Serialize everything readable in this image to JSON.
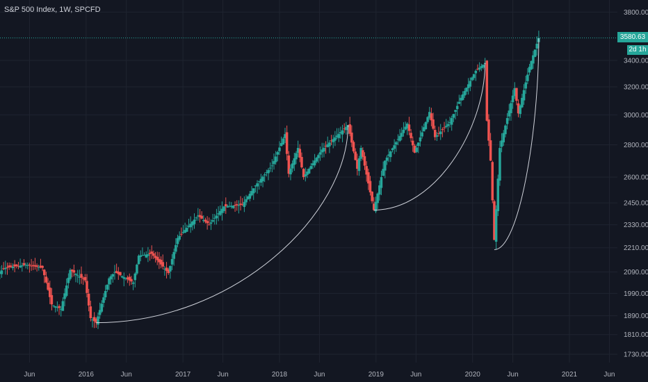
{
  "legend": {
    "title": "S&P 500 Index, 1W, SPCFD"
  },
  "last_price": {
    "value": "3580.63",
    "countdown": "2d 1h"
  },
  "colors": {
    "background": "#131722",
    "up": "#26a69a",
    "down": "#ef5350",
    "grid": "#1f2430",
    "axis_text": "#b2b5be",
    "arc": "#d1d4dc",
    "price_line": "#26a69a"
  },
  "chart_data": {
    "type": "candlestick",
    "title": "S&P 500 Index, 1W, SPCFD",
    "scale": "log",
    "grid": true,
    "y_ticks": [
      1730,
      1810,
      1890,
      1990,
      2090,
      2210,
      2330,
      2450,
      2600,
      2800,
      3000,
      3200,
      3400,
      3800
    ],
    "y_tick_labels": [
      "1730.00",
      "1810.00",
      "1890.00",
      "1990.00",
      "2090.00",
      "2210.00",
      "2330.00",
      "2450.00",
      "2600.00",
      "2800.00",
      "3000.00",
      "3200.00",
      "3400.00",
      "3800.00"
    ],
    "x_ticks": [
      {
        "label": "Jun",
        "date": "2015-06-01"
      },
      {
        "label": "2016",
        "date": "2016-01-01"
      },
      {
        "label": "Jun",
        "date": "2016-06-01"
      },
      {
        "label": "2017",
        "date": "2017-01-01"
      },
      {
        "label": "Jun",
        "date": "2017-06-01"
      },
      {
        "label": "2018",
        "date": "2018-01-01"
      },
      {
        "label": "Jun",
        "date": "2018-06-01"
      },
      {
        "label": "2019",
        "date": "2019-01-01"
      },
      {
        "label": "Jun",
        "date": "2019-06-01"
      },
      {
        "label": "2020",
        "date": "2020-01-01"
      },
      {
        "label": "Jun",
        "date": "2020-06-01"
      },
      {
        "label": "2021",
        "date": "2021-01-01"
      },
      {
        "label": "Jun",
        "date": "2021-06-01"
      }
    ],
    "close_path": [
      [
        "2015-01-05",
        2060
      ],
      [
        "2015-03-02",
        2110
      ],
      [
        "2015-05-18",
        2125
      ],
      [
        "2015-07-20",
        2110
      ],
      [
        "2015-08-24",
        1940
      ],
      [
        "2015-09-28",
        1920
      ],
      [
        "2015-11-02",
        2100
      ],
      [
        "2015-12-28",
        2050
      ],
      [
        "2016-01-18",
        1880
      ],
      [
        "2016-02-08",
        1860
      ],
      [
        "2016-03-28",
        2060
      ],
      [
        "2016-04-18",
        2090
      ],
      [
        "2016-06-27",
        2040
      ],
      [
        "2016-07-18",
        2170
      ],
      [
        "2016-09-05",
        2180
      ],
      [
        "2016-11-07",
        2085
      ],
      [
        "2016-12-12",
        2260
      ],
      [
        "2017-02-27",
        2380
      ],
      [
        "2017-04-10",
        2330
      ],
      [
        "2017-06-05",
        2430
      ],
      [
        "2017-08-14",
        2440
      ],
      [
        "2017-10-02",
        2550
      ],
      [
        "2017-12-04",
        2670
      ],
      [
        "2018-01-22",
        2870
      ],
      [
        "2018-02-05",
        2620
      ],
      [
        "2018-03-12",
        2780
      ],
      [
        "2018-04-02",
        2600
      ],
      [
        "2018-06-11",
        2770
      ],
      [
        "2018-09-17",
        2930
      ],
      [
        "2018-10-22",
        2650
      ],
      [
        "2018-11-05",
        2780
      ],
      [
        "2018-12-24",
        2410
      ],
      [
        "2019-02-04",
        2700
      ],
      [
        "2019-04-29",
        2940
      ],
      [
        "2019-05-27",
        2750
      ],
      [
        "2019-07-22",
        3020
      ],
      [
        "2019-08-12",
        2850
      ],
      [
        "2019-10-07",
        2950
      ],
      [
        "2019-11-18",
        3120
      ],
      [
        "2020-01-13",
        3320
      ],
      [
        "2020-02-17",
        3380
      ],
      [
        "2020-02-24",
        2960
      ],
      [
        "2020-03-09",
        2700
      ],
      [
        "2020-03-23",
        2250
      ],
      [
        "2020-04-13",
        2780
      ],
      [
        "2020-06-08",
        3190
      ],
      [
        "2020-06-22",
        3010
      ],
      [
        "2020-08-03",
        3350
      ],
      [
        "2020-09-07",
        3580
      ]
    ],
    "arcs": [
      {
        "from": [
          "2016-02-08",
          1860
        ],
        "to": [
          "2018-09-17",
          2930
        ]
      },
      {
        "from": [
          "2018-12-24",
          2410
        ],
        "to": [
          "2020-02-17",
          3380
        ]
      },
      {
        "from": [
          "2020-03-23",
          2200
        ],
        "to": [
          "2020-09-07",
          3580
        ]
      }
    ],
    "last": {
      "value": 3580.63,
      "countdown": "2d 1h"
    }
  }
}
